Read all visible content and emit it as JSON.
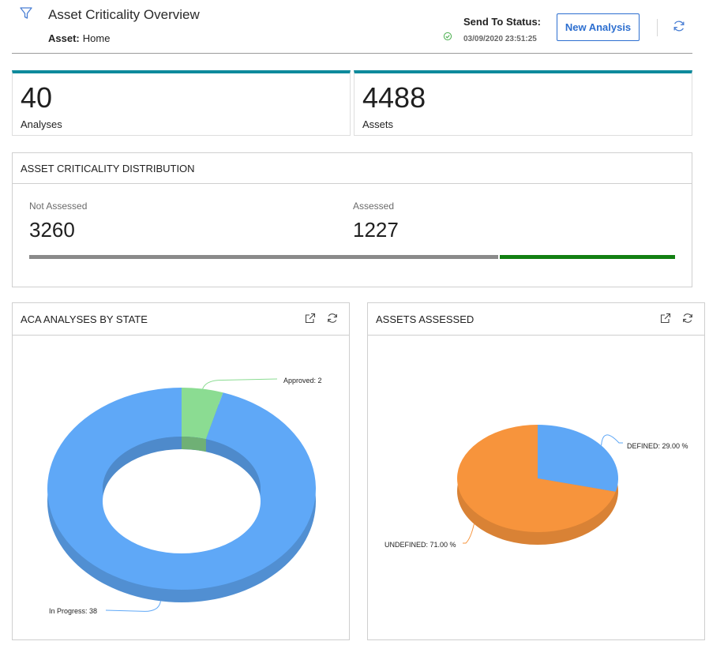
{
  "header": {
    "title": "Asset Criticality Overview",
    "asset_label": "Asset:",
    "asset_value": "Home",
    "send_to_status_label": "Send To Status:",
    "send_to_status_time": "03/09/2020 23:51:25",
    "new_analysis_label": "New Analysis"
  },
  "kpis": [
    {
      "value": "40",
      "label": "Analyses"
    },
    {
      "value": "4488",
      "label": "Assets"
    }
  ],
  "distribution": {
    "title": "ASSET CRITICALITY DISTRIBUTION",
    "items": [
      {
        "label": "Not Assessed",
        "value": "3260",
        "color": "#8a8a8a"
      },
      {
        "label": "Assessed",
        "value": "1227",
        "color": "#127f12"
      }
    ]
  },
  "panels": {
    "aca_state": {
      "title": "ACA ANALYSES BY STATE"
    },
    "assets_assessed": {
      "title": "ASSETS ASSESSED"
    }
  },
  "chart_data": [
    {
      "type": "pie",
      "variant": "3d-donut",
      "categories": [
        "Approved",
        "In Progress"
      ],
      "values": [
        2,
        38
      ],
      "data_labels": [
        "Approved: 2",
        "In Progress: 38"
      ],
      "colors": [
        "#8bdc92",
        "#5fa8f7"
      ]
    },
    {
      "type": "pie",
      "variant": "3d-pie",
      "categories": [
        "DEFINED",
        "UNDEFINED"
      ],
      "values": [
        29.0,
        71.0
      ],
      "data_labels": [
        "DEFINED: 29.00 %",
        "UNDEFINED: 71.00 %"
      ],
      "colors": [
        "#5ea7f6",
        "#f7943c"
      ]
    }
  ],
  "colors": {
    "kpi_accent": "#0e8a9c",
    "primary_button": "#2d6fd0",
    "status_ok": "#4caf50"
  },
  "icons": {
    "filter": "filter-icon",
    "status": "check-icon",
    "refresh": "refresh-icon",
    "expand": "external-link-icon"
  }
}
